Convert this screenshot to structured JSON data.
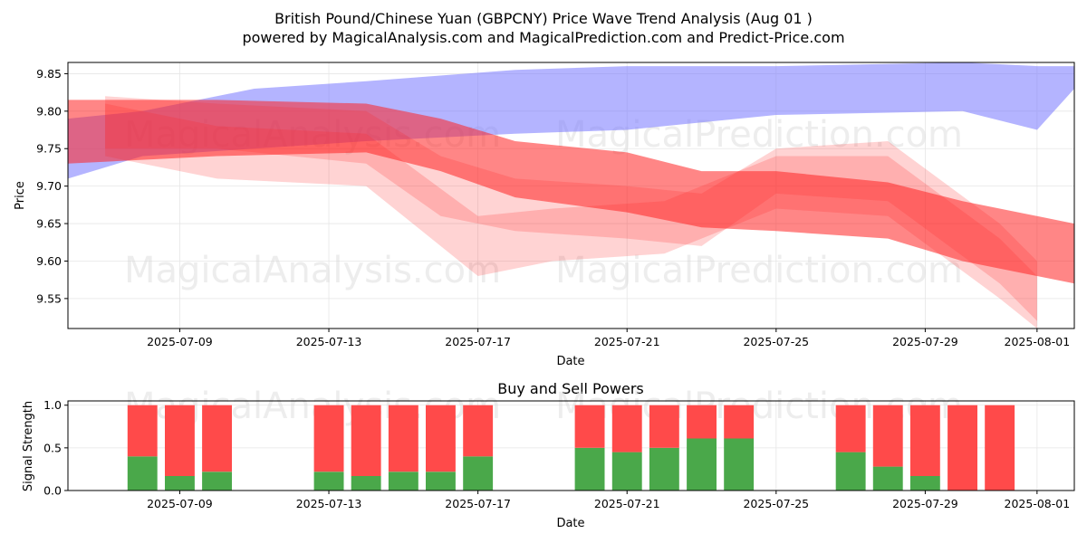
{
  "title": {
    "line1": "British Pound/Chinese Yuan (GBPCNY) Price Wave Trend Analysis (Aug 01 )",
    "line2": "powered by MagicalAnalysis.com and MagicalPrediction.com and Predict-Price.com"
  },
  "watermarks": [
    "MagicalAnalysis.com",
    "MagicalPrediction.com"
  ],
  "colors": {
    "blue_band": "#7777ff",
    "red_band": "#ff2222",
    "buy": "#4aa84a",
    "sell": "#ff4a4a"
  },
  "chart_data": [
    {
      "type": "area",
      "xlabel": "Date",
      "ylabel": "Price",
      "x_ticks": [
        "2025-07-09",
        "2025-07-13",
        "2025-07-17",
        "2025-07-21",
        "2025-07-25",
        "2025-07-29",
        "2025-08-01"
      ],
      "x_tick_dates": [
        "2025-07-09",
        "2025-07-13",
        "2025-07-17",
        "2025-07-21",
        "2025-07-25",
        "2025-07-29",
        "2025-08-01"
      ],
      "y_ticks": [
        "9.55",
        "9.60",
        "9.65",
        "9.70",
        "9.75",
        "9.80",
        "9.85"
      ],
      "ylim": [
        9.51,
        9.865
      ],
      "xlim": [
        "2025-07-06",
        "2025-08-02"
      ],
      "grid": true,
      "series": [
        {
          "color": "blue",
          "points": [
            {
              "x": "2025-07-06",
              "low": 9.71,
              "high": 9.79
            },
            {
              "x": "2025-07-08",
              "low": 9.74,
              "high": 9.8
            },
            {
              "x": "2025-07-11",
              "low": 9.75,
              "high": 9.83
            },
            {
              "x": "2025-07-14",
              "low": 9.76,
              "high": 9.84
            },
            {
              "x": "2025-07-18",
              "low": 9.77,
              "high": 9.855
            },
            {
              "x": "2025-07-21",
              "low": 9.775,
              "high": 9.86
            },
            {
              "x": "2025-07-25",
              "low": 9.795,
              "high": 9.86
            },
            {
              "x": "2025-07-30",
              "low": 9.8,
              "high": 9.865
            },
            {
              "x": "2025-08-01",
              "low": 9.775,
              "high": 9.86
            },
            {
              "x": "2025-08-02",
              "low": 9.83,
              "high": 9.86
            }
          ]
        },
        {
          "color": "red",
          "points": [
            {
              "x": "2025-07-06",
              "low": 9.73,
              "high": 9.815
            },
            {
              "x": "2025-07-10",
              "low": 9.74,
              "high": 9.815
            },
            {
              "x": "2025-07-14",
              "low": 9.745,
              "high": 9.81
            },
            {
              "x": "2025-07-16",
              "low": 9.72,
              "high": 9.79
            },
            {
              "x": "2025-07-18",
              "low": 9.685,
              "high": 9.76
            },
            {
              "x": "2025-07-21",
              "low": 9.665,
              "high": 9.745
            },
            {
              "x": "2025-07-23",
              "low": 9.645,
              "high": 9.72
            },
            {
              "x": "2025-07-25",
              "low": 9.64,
              "high": 9.72
            },
            {
              "x": "2025-07-28",
              "low": 9.63,
              "high": 9.705
            },
            {
              "x": "2025-07-30",
              "low": 9.6,
              "high": 9.68
            },
            {
              "x": "2025-08-02",
              "low": 9.57,
              "high": 9.65
            }
          ]
        },
        {
          "color": "red",
          "points": [
            {
              "x": "2025-07-07",
              "low": 9.74,
              "high": 9.81
            },
            {
              "x": "2025-07-10",
              "low": 9.71,
              "high": 9.78
            },
            {
              "x": "2025-07-14",
              "low": 9.7,
              "high": 9.77
            },
            {
              "x": "2025-07-17",
              "low": 9.58,
              "high": 9.66
            },
            {
              "x": "2025-07-19",
              "low": 9.6,
              "high": 9.67
            },
            {
              "x": "2025-07-22",
              "low": 9.61,
              "high": 9.68
            },
            {
              "x": "2025-07-25",
              "low": 9.67,
              "high": 9.74
            },
            {
              "x": "2025-07-28",
              "low": 9.66,
              "high": 9.74
            },
            {
              "x": "2025-07-31",
              "low": 9.55,
              "high": 9.63
            },
            {
              "x": "2025-08-01",
              "low": 9.51,
              "high": 9.58
            }
          ]
        },
        {
          "color": "red",
          "points": [
            {
              "x": "2025-07-07",
              "low": 9.75,
              "high": 9.82
            },
            {
              "x": "2025-07-10",
              "low": 9.75,
              "high": 9.81
            },
            {
              "x": "2025-07-14",
              "low": 9.73,
              "high": 9.8
            },
            {
              "x": "2025-07-16",
              "low": 9.66,
              "high": 9.74
            },
            {
              "x": "2025-07-18",
              "low": 9.64,
              "high": 9.71
            },
            {
              "x": "2025-07-21",
              "low": 9.63,
              "high": 9.7
            },
            {
              "x": "2025-07-23",
              "low": 9.62,
              "high": 9.69
            },
            {
              "x": "2025-07-25",
              "low": 9.69,
              "high": 9.75
            },
            {
              "x": "2025-07-28",
              "low": 9.68,
              "high": 9.76
            },
            {
              "x": "2025-07-31",
              "low": 9.57,
              "high": 9.65
            },
            {
              "x": "2025-08-01",
              "low": 9.52,
              "high": 9.6
            }
          ]
        }
      ]
    },
    {
      "type": "bar",
      "title": "Buy and Sell Powers",
      "xlabel": "Date",
      "ylabel": "Signal Strength",
      "x_ticks": [
        "2025-07-09",
        "2025-07-13",
        "2025-07-17",
        "2025-07-21",
        "2025-07-25",
        "2025-07-29",
        "2025-08-01"
      ],
      "x_tick_dates": [
        "2025-07-09",
        "2025-07-13",
        "2025-07-17",
        "2025-07-21",
        "2025-07-25",
        "2025-07-29",
        "2025-08-01"
      ],
      "y_ticks": [
        "0.0",
        "0.5",
        "1.0"
      ],
      "ylim": [
        0,
        1.05
      ],
      "xlim": [
        "2025-07-06",
        "2025-08-02"
      ],
      "categories": [
        "2025-07-08",
        "2025-07-09",
        "2025-07-10",
        "2025-07-13",
        "2025-07-14",
        "2025-07-15",
        "2025-07-16",
        "2025-07-17",
        "2025-07-20",
        "2025-07-21",
        "2025-07-22",
        "2025-07-23",
        "2025-07-24",
        "2025-07-27",
        "2025-07-28",
        "2025-07-29",
        "2025-07-30",
        "2025-07-31"
      ],
      "buy": [
        0.4,
        0.17,
        0.22,
        0.22,
        0.17,
        0.22,
        0.22,
        0.4,
        0.5,
        0.45,
        0.5,
        0.61,
        0.61,
        0.45,
        0.28,
        0.17,
        0.0,
        0.0
      ],
      "sell": [
        0.6,
        0.83,
        0.78,
        0.78,
        0.83,
        0.78,
        0.78,
        0.6,
        0.5,
        0.55,
        0.5,
        0.39,
        0.39,
        0.55,
        0.72,
        0.83,
        1.0,
        1.0
      ]
    }
  ]
}
